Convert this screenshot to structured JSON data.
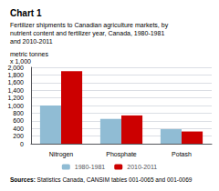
{
  "chart_data": {
    "type": "bar",
    "title": "Chart 1",
    "subtitle": "Fertilizer shipments to Canadian agriculture markets, by\nnutrient content and fertilizer year, Canada, 1980-1981\nand 2010-2011",
    "ylabel": "metric tonnes\nx 1,000",
    "categories": [
      "Nitrogen",
      "Phosphate",
      "Potash"
    ],
    "series": [
      {
        "name": "1980-1981",
        "color": "#90bcd4",
        "values": [
          1000,
          650,
          380
        ]
      },
      {
        "name": "2010-2011",
        "color": "#cc0000",
        "values": [
          1900,
          740,
          320
        ]
      }
    ],
    "ylim": [
      0,
      2000
    ],
    "yticks": [
      0,
      200,
      400,
      600,
      800,
      {
        "value": 1000,
        "label": "1,000"
      },
      {
        "value": 1200,
        "label": "1,200"
      },
      {
        "value": 1400,
        "label": "1,400"
      },
      {
        "value": 1600,
        "label": "1,600"
      },
      {
        "value": 1800,
        "label": "1,800"
      },
      {
        "value": 2000,
        "label": "2,000"
      }
    ],
    "grid": true,
    "legend": "bottom",
    "annotations": [
      "Sources:",
      "Statistics Canada, CANSIM tables 001-0065 and 001-0069"
    ]
  }
}
